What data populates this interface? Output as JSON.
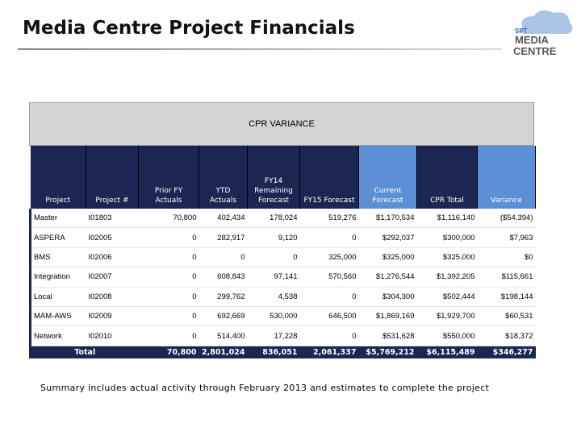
{
  "header": {
    "title": "Media Centre Project Financials",
    "logo": {
      "brand": "SPT",
      "line1": "MEDIA",
      "line2": "CENTRE"
    }
  },
  "table": {
    "banner": "CPR VARIANCE",
    "columns": [
      "Project",
      "Project #",
      "Prior FY Actuals",
      "YTD Actuals",
      "FY14 Remaining Forecast",
      "FY15 Forecast",
      "Current Forecast",
      "CPR Total",
      "Variance"
    ],
    "rows": [
      [
        "Master",
        "I01803",
        "70,800",
        "402,434",
        "178,024",
        "519,276",
        "$1,170,534",
        "$1,116,140",
        "($54,394)"
      ],
      [
        "ASPERA",
        "I02005",
        "0",
        "282,917",
        "9,120",
        "0",
        "$292,037",
        "$300,000",
        "$7,963"
      ],
      [
        "BMS",
        "I02006",
        "0",
        "0",
        "0",
        "325,000",
        "$325,000",
        "$325,000",
        "$0"
      ],
      [
        "Integration",
        "I02007",
        "0",
        "608,843",
        "97,141",
        "570,560",
        "$1,276,544",
        "$1,392,205",
        "$115,661"
      ],
      [
        "Local",
        "I02008",
        "0",
        "299,762",
        "4,538",
        "0",
        "$304,300",
        "$502,444",
        "$198,144"
      ],
      [
        "MAM-AWS",
        "I02009",
        "0",
        "692,669",
        "530,000",
        "646,500",
        "$1,869,169",
        "$1,929,700",
        "$60,531"
      ],
      [
        "Network",
        "I02010",
        "0",
        "514,400",
        "17,228",
        "0",
        "$531,628",
        "$550,000",
        "$18,372"
      ]
    ],
    "total": [
      "Total",
      "70,800",
      "2,801,024",
      "836,051",
      "2,061,337",
      "$5,769,212",
      "$6,115,489",
      "$346,277"
    ]
  },
  "footer": {
    "note": "Summary includes actual activity through February 2013 and estimates to complete the project"
  }
}
